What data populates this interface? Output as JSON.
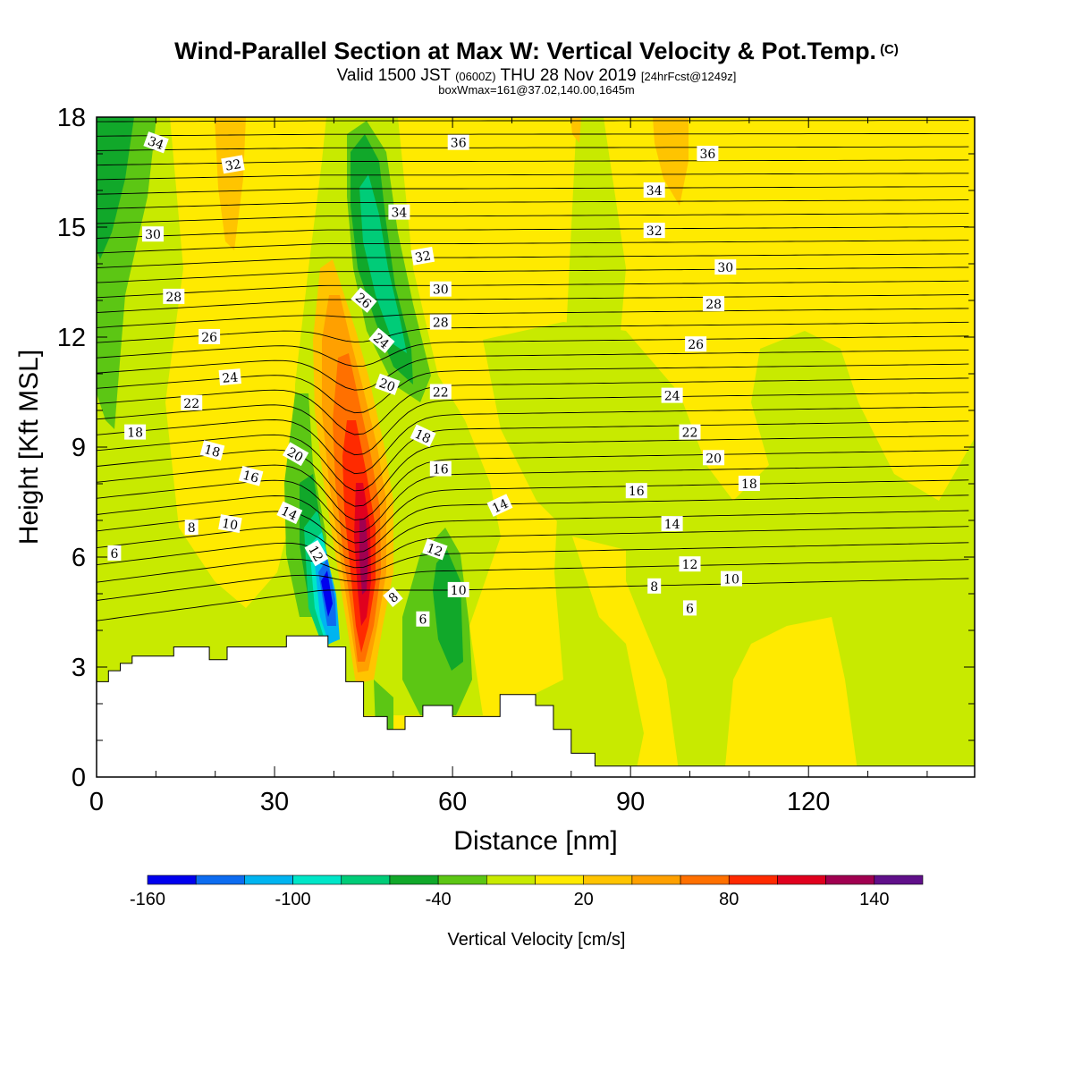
{
  "title": {
    "main": "Wind-Parallel Section at Max W: Vertical Velocity & Pot.Temp.",
    "copyright": "(C)",
    "line2_a": "Valid 1500 JST",
    "line2_b": "(0600Z)",
    "line2_c": "THU 28 Nov 2019",
    "line2_d": "[24hrFcst@1249z]",
    "line3": "boxWmax=161@37.02,140.00,1645m"
  },
  "chart_data": {
    "type": "heatmap",
    "xlabel": "Distance [nm]",
    "ylabel": "Height [Kft MSL]",
    "xlim": [
      0,
      148
    ],
    "ylim": [
      0,
      18
    ],
    "x_ticks": [
      0,
      30,
      60,
      90,
      120
    ],
    "y_ticks": [
      0,
      3,
      6,
      9,
      12,
      15,
      18
    ],
    "colorbar": {
      "label": "Vertical Velocity [cm/s]",
      "bounds": [
        -160,
        -140,
        -120,
        -100,
        -80,
        -60,
        -40,
        -20,
        0,
        20,
        40,
        60,
        80,
        100,
        120,
        140,
        160
      ],
      "tick_labels": [
        "-160",
        "-100",
        "-40",
        "20",
        "80",
        "140"
      ],
      "tick_values": [
        -160,
        -100,
        -40,
        20,
        80,
        140
      ],
      "colors": [
        "#0000ee",
        "#0d6cf0",
        "#00b4f0",
        "#00e6c8",
        "#00cc78",
        "#11a82a",
        "#5cc614",
        "#c8ea00",
        "#ffea00",
        "#ffc400",
        "#ffa000",
        "#ff7000",
        "#ff2a00",
        "#e0001e",
        "#a00050",
        "#60108a"
      ]
    },
    "terrain_kft": [
      [
        0,
        2.6
      ],
      [
        2,
        2.6
      ],
      [
        2,
        2.9
      ],
      [
        4,
        2.9
      ],
      [
        4,
        3.1
      ],
      [
        6,
        3.1
      ],
      [
        6,
        3.3
      ],
      [
        13,
        3.3
      ],
      [
        13,
        3.55
      ],
      [
        19,
        3.55
      ],
      [
        19,
        3.2
      ],
      [
        22,
        3.2
      ],
      [
        22,
        3.55
      ],
      [
        32,
        3.55
      ],
      [
        32,
        3.85
      ],
      [
        39,
        3.85
      ],
      [
        39,
        3.55
      ],
      [
        42,
        3.55
      ],
      [
        42,
        2.6
      ],
      [
        45,
        2.6
      ],
      [
        45,
        1.65
      ],
      [
        49,
        1.65
      ],
      [
        49,
        1.3
      ],
      [
        52,
        1.3
      ],
      [
        52,
        1.65
      ],
      [
        55,
        1.65
      ],
      [
        55,
        1.95
      ],
      [
        60,
        1.95
      ],
      [
        60,
        1.65
      ],
      [
        68,
        1.65
      ],
      [
        68,
        2.25
      ],
      [
        74,
        2.25
      ],
      [
        74,
        1.95
      ],
      [
        77,
        1.95
      ],
      [
        77,
        1.3
      ],
      [
        80,
        1.3
      ],
      [
        80,
        0.65
      ],
      [
        84,
        0.65
      ],
      [
        84,
        0.3
      ],
      [
        148,
        0.3
      ]
    ],
    "theta_labels": [
      {
        "text": "34",
        "x": 10,
        "y": 17.3,
        "rot": 20
      },
      {
        "text": "32",
        "x": 23,
        "y": 16.7,
        "rot": -10
      },
      {
        "text": "30",
        "x": 9.5,
        "y": 14.8,
        "rot": 0
      },
      {
        "text": "28",
        "x": 13,
        "y": 13.1,
        "rot": 0
      },
      {
        "text": "26",
        "x": 19,
        "y": 12.0,
        "rot": 0
      },
      {
        "text": "24",
        "x": 22.5,
        "y": 10.9,
        "rot": -5
      },
      {
        "text": "22",
        "x": 16,
        "y": 10.2,
        "rot": 0
      },
      {
        "text": "18",
        "x": 6.5,
        "y": 9.4,
        "rot": 0
      },
      {
        "text": "18",
        "x": 19.5,
        "y": 8.9,
        "rot": 15
      },
      {
        "text": "20",
        "x": 33.5,
        "y": 8.8,
        "rot": 30
      },
      {
        "text": "16",
        "x": 26,
        "y": 8.2,
        "rot": 15
      },
      {
        "text": "14",
        "x": 32.5,
        "y": 7.2,
        "rot": 25
      },
      {
        "text": "10",
        "x": 22.5,
        "y": 6.9,
        "rot": 10
      },
      {
        "text": "8",
        "x": 16,
        "y": 6.8,
        "rot": 0
      },
      {
        "text": "6",
        "x": 3,
        "y": 6.1,
        "rot": 0
      },
      {
        "text": "12",
        "x": 37,
        "y": 6.1,
        "rot": 60
      },
      {
        "text": "36",
        "x": 61,
        "y": 17.3,
        "rot": 0
      },
      {
        "text": "34",
        "x": 51,
        "y": 15.4,
        "rot": 0
      },
      {
        "text": "32",
        "x": 55,
        "y": 14.2,
        "rot": -10
      },
      {
        "text": "30",
        "x": 58,
        "y": 13.3,
        "rot": 0
      },
      {
        "text": "28",
        "x": 58,
        "y": 12.4,
        "rot": 0
      },
      {
        "text": "26",
        "x": 45,
        "y": 13.0,
        "rot": 40
      },
      {
        "text": "24",
        "x": 48,
        "y": 11.9,
        "rot": 40
      },
      {
        "text": "20",
        "x": 49,
        "y": 10.7,
        "rot": 20
      },
      {
        "text": "22",
        "x": 58,
        "y": 10.5,
        "rot": 0
      },
      {
        "text": "18",
        "x": 55,
        "y": 9.3,
        "rot": 25
      },
      {
        "text": "16",
        "x": 58,
        "y": 8.4,
        "rot": 0
      },
      {
        "text": "14",
        "x": 68,
        "y": 7.4,
        "rot": -25
      },
      {
        "text": "12",
        "x": 57,
        "y": 6.2,
        "rot": 20
      },
      {
        "text": "10",
        "x": 61,
        "y": 5.1,
        "rot": 0
      },
      {
        "text": "8",
        "x": 50,
        "y": 4.9,
        "rot": -40
      },
      {
        "text": "6",
        "x": 55,
        "y": 4.3,
        "rot": 0
      },
      {
        "text": "36",
        "x": 103,
        "y": 17.0,
        "rot": 0
      },
      {
        "text": "34",
        "x": 94,
        "y": 16.0,
        "rot": 0
      },
      {
        "text": "32",
        "x": 94,
        "y": 14.9,
        "rot": 0
      },
      {
        "text": "30",
        "x": 106,
        "y": 13.9,
        "rot": 0
      },
      {
        "text": "28",
        "x": 104,
        "y": 12.9,
        "rot": 0
      },
      {
        "text": "26",
        "x": 101,
        "y": 11.8,
        "rot": 0
      },
      {
        "text": "24",
        "x": 97,
        "y": 10.4,
        "rot": 0
      },
      {
        "text": "22",
        "x": 100,
        "y": 9.4,
        "rot": 0
      },
      {
        "text": "20",
        "x": 104,
        "y": 8.7,
        "rot": 0
      },
      {
        "text": "18",
        "x": 110,
        "y": 8.0,
        "rot": 0
      },
      {
        "text": "16",
        "x": 91,
        "y": 7.8,
        "rot": 0
      },
      {
        "text": "14",
        "x": 97,
        "y": 6.9,
        "rot": 0
      },
      {
        "text": "12",
        "x": 100,
        "y": 5.8,
        "rot": 0
      },
      {
        "text": "10",
        "x": 107,
        "y": 5.4,
        "rot": 0
      },
      {
        "text": "8",
        "x": 94,
        "y": 5.2,
        "rot": 0
      },
      {
        "text": "6",
        "x": 100,
        "y": 4.6,
        "rot": 0
      }
    ]
  }
}
